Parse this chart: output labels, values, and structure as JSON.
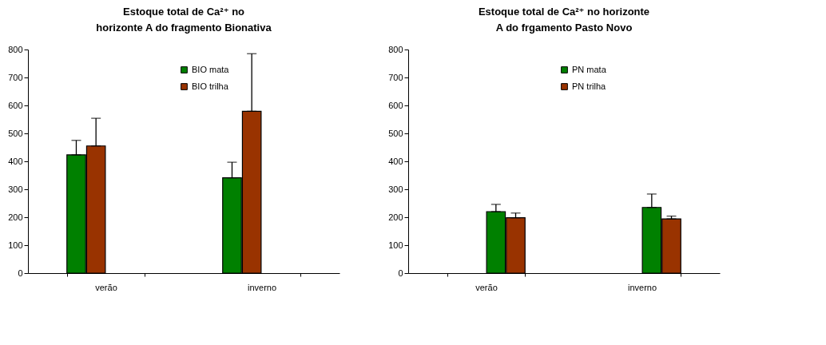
{
  "chart_data": [
    {
      "type": "bar",
      "title": "Estoque total de Ca²⁺ no horizonte A do fragmento Bionativa",
      "categories": [
        "verão",
        "inverno"
      ],
      "series": [
        {
          "name": "BIO mata",
          "color": "#008000",
          "values": [
            423,
            341
          ],
          "errors": [
            [
              423,
              475
            ],
            [
              341,
              397
            ]
          ]
        },
        {
          "name": "BIO trilha",
          "color": "#993300",
          "values": [
            455,
            579
          ],
          "errors": [
            [
              455,
              554
            ],
            [
              579,
              785
            ]
          ]
        }
      ],
      "ylim": [
        0,
        800
      ],
      "yticks": [
        0,
        100,
        200,
        300,
        400,
        500,
        600,
        700,
        800
      ],
      "grid": false,
      "legend": "top right"
    },
    {
      "type": "bar",
      "title": "Estoque total de Ca²⁺ no horizonte A do frgamento Pasto Novo",
      "categories": [
        "verão",
        "inverno"
      ],
      "series": [
        {
          "name": "PN mata",
          "color": "#008000",
          "values": [
            220,
            235
          ],
          "errors": [
            [
              220,
              246
            ],
            [
              235,
              283
            ]
          ]
        },
        {
          "name": "PN trilha",
          "color": "#993300",
          "values": [
            198,
            194
          ],
          "errors": [
            [
              198,
              215
            ],
            [
              194,
              204
            ]
          ]
        }
      ],
      "ylim": [
        0,
        800
      ],
      "yticks": [
        0,
        100,
        200,
        300,
        400,
        500,
        600,
        700,
        800
      ],
      "grid": false,
      "legend": "top right"
    }
  ]
}
